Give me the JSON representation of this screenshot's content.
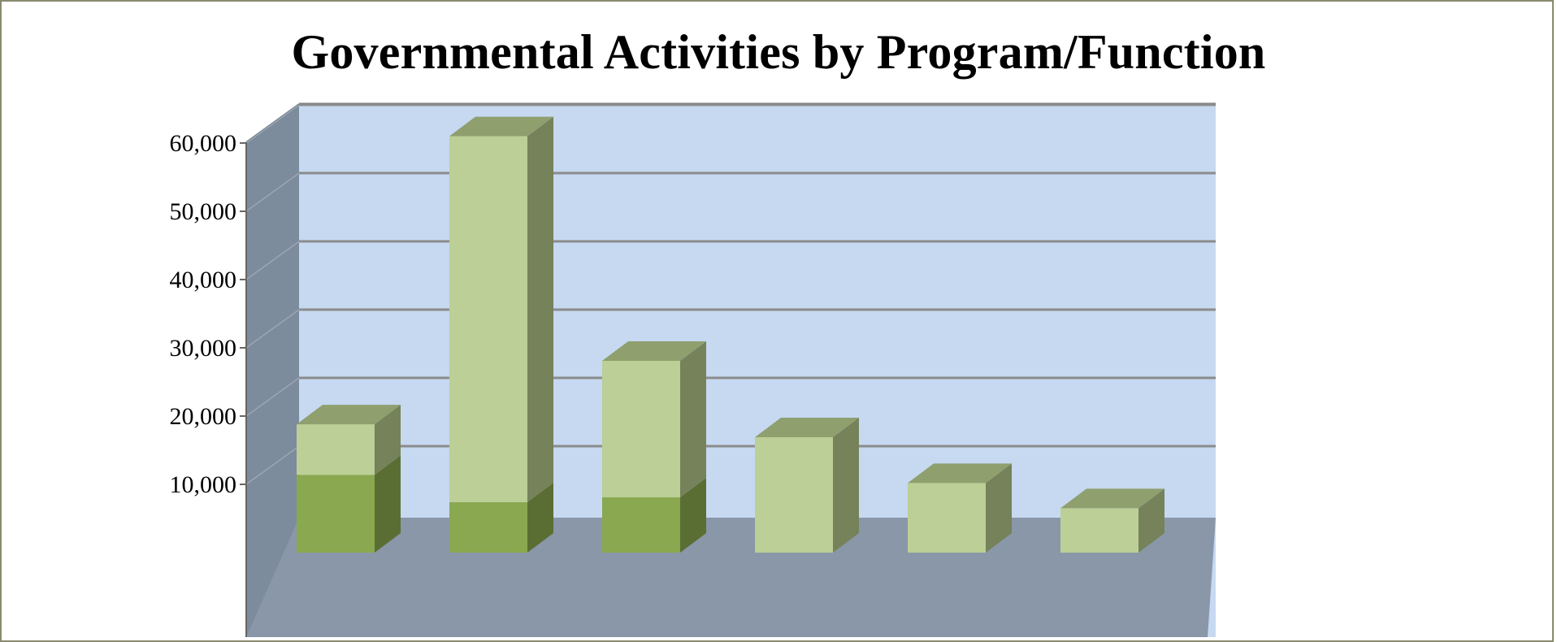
{
  "chart_data": {
    "type": "bar",
    "stacked": true,
    "three_d": true,
    "title": "Governmental Activities by Program/Function",
    "xlabel": "",
    "ylabel": "",
    "ylim": [
      0,
      60000
    ],
    "yticks": [
      "60,000",
      "50,000",
      "40,000",
      "30,000",
      "20,000",
      "10,000"
    ],
    "grid": true,
    "categories": [
      "",
      "",
      "",
      "",
      "",
      ""
    ],
    "series": [
      {
        "values": [
          11400,
          7400,
          8100,
          0,
          0,
          0
        ]
      },
      {
        "values": [
          7400,
          53600,
          20000,
          16900,
          10200,
          6500
        ]
      }
    ],
    "colors": {
      "series": [
        "#8aa84f",
        "#bccf96"
      ],
      "series_side": [
        "#5a6e33",
        "#75825a"
      ],
      "top": "#8f9f6e",
      "wall_back": "#c6d9f1",
      "wall_side": "#7c8c9c",
      "floor": "#8a97a8",
      "grid": "#8c8c8c"
    }
  }
}
